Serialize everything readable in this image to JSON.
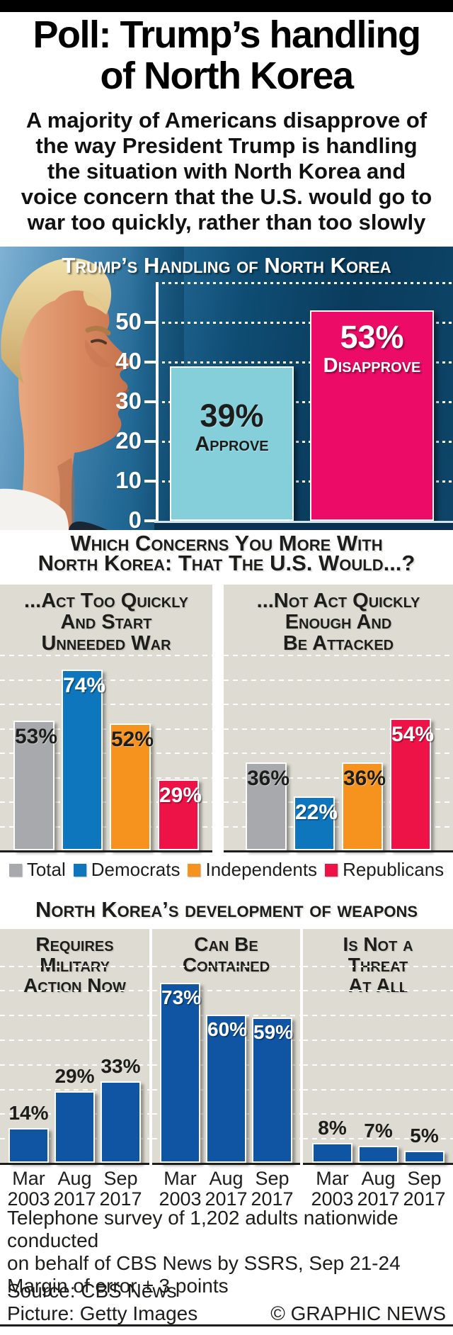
{
  "header": {
    "title_lines": [
      "Poll: Trump’s handling",
      "of North Korea"
    ],
    "subtitle_lines": [
      "A majority of Americans disapprove of",
      "the way President Trump is handling",
      "the situation with North Korea and",
      "voice concern that the U.S. would go to",
      "war too quickly, rather than too slowly"
    ]
  },
  "chart_data": [
    {
      "id": "approval",
      "type": "bar",
      "title": "Trump’s Handling of North Korea",
      "unit": "%",
      "ylim": [
        0,
        60
      ],
      "yticks": [
        0,
        10,
        20,
        30,
        40,
        50
      ],
      "gridlines": [
        10,
        20,
        30,
        40,
        50,
        60
      ],
      "grid": "dotted-white",
      "background": "#0d4568",
      "bars": [
        {
          "label": "39%",
          "sublabel": "Approve",
          "value": 39,
          "color": "#85cfda",
          "text_color": "#1d1d1b"
        },
        {
          "label": "53%",
          "sublabel": "Disapprove",
          "value": 53,
          "color": "#ec0b66",
          "text_color": "#ffffff"
        }
      ]
    },
    {
      "id": "concern",
      "type": "grouped-bar",
      "question_lines": [
        "Which Concerns You More With",
        "North Korea: That The U.S. Would...?"
      ],
      "unit": "%",
      "ylim": [
        0,
        80
      ],
      "gridlines": [
        10,
        20,
        30,
        40,
        50,
        60,
        70,
        80
      ],
      "panel_background": "#dedcd2",
      "legend": [
        {
          "name": "Total",
          "color": "#a7a9ac",
          "label_color": "#1d1d1b"
        },
        {
          "name": "Democrats",
          "color": "#0e76bd",
          "label_color": "#ffffff"
        },
        {
          "name": "Independents",
          "color": "#f6921e",
          "label_color": "#1d1d1b"
        },
        {
          "name": "Republicans",
          "color": "#ed1347",
          "label_color": "#ffffff"
        }
      ],
      "panels": [
        {
          "title_lines": [
            "...Act Too Quickly",
            "And Start",
            "Unneeded War"
          ],
          "values": [
            53,
            74,
            52,
            29
          ],
          "labels": [
            "53%",
            "74%",
            "52%",
            "29%"
          ]
        },
        {
          "title_lines": [
            "...Not Act Quickly",
            "Enough And",
            "Be Attacked"
          ],
          "values": [
            36,
            22,
            36,
            54
          ],
          "labels": [
            "36%",
            "22%",
            "36%",
            "54%"
          ]
        }
      ]
    },
    {
      "id": "weapons",
      "type": "grouped-bar",
      "title": "North Korea’s development of weapons",
      "unit": "%",
      "ylim": [
        0,
        80
      ],
      "gridlines": [
        10,
        20,
        30,
        40,
        50,
        60,
        70,
        80
      ],
      "bar_color": "#0f55a3",
      "panel_background": "#dedcd2",
      "categories": [
        [
          "Mar",
          "2003"
        ],
        [
          "Aug",
          "2017"
        ],
        [
          "Sep",
          "2017"
        ]
      ],
      "panels": [
        {
          "title_lines": [
            "Requires",
            "Military",
            "Action Now"
          ],
          "values": [
            14,
            29,
            33
          ],
          "labels": [
            "14%",
            "29%",
            "33%"
          ]
        },
        {
          "title_lines": [
            "Can Be",
            "Contained"
          ],
          "values": [
            73,
            60,
            59
          ],
          "labels": [
            "73%",
            "60%",
            "59%"
          ]
        },
        {
          "title_lines": [
            "Is Not a",
            "Threat",
            "At All"
          ],
          "values": [
            8,
            7,
            5
          ],
          "labels": [
            "8%",
            "7%",
            "5%"
          ]
        }
      ]
    }
  ],
  "footer": {
    "survey_lines": [
      "Telephone survey of 1,202 adults nationwide conducted",
      "on behalf of CBS News by SSRS, Sep 21-24",
      "Margin of error ± 3 points"
    ],
    "source": "Source: CBS News",
    "picture": "Picture: Getty Images",
    "credit": "© GRAPHIC NEWS"
  }
}
